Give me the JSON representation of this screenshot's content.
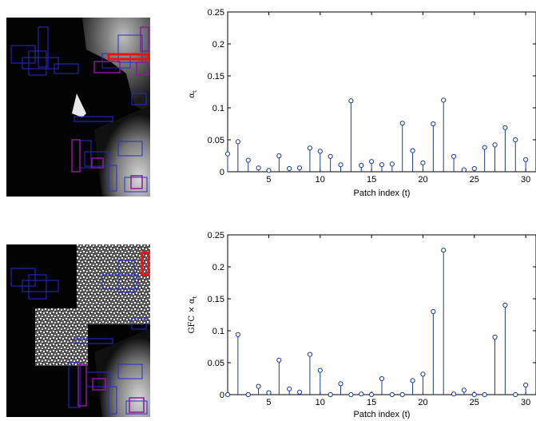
{
  "chart_data": [
    {
      "type": "stem",
      "xlabel": "Patch index (t)",
      "ylabel": "α_t",
      "ylabel_main": "α",
      "ylabel_sub": "t",
      "ylim": [
        0,
        0.25
      ],
      "xlim": [
        1,
        31
      ],
      "xticks": [
        5,
        10,
        15,
        20,
        25,
        30
      ],
      "yticks": [
        0,
        0.05,
        0.1,
        0.15,
        0.2,
        0.25
      ],
      "ytick_labels": [
        "0",
        "0.05",
        "0.1",
        "0.15",
        "0.2",
        "0.25"
      ],
      "x": [
        1,
        2,
        3,
        4,
        5,
        6,
        7,
        8,
        9,
        10,
        11,
        12,
        13,
        14,
        15,
        16,
        17,
        18,
        19,
        20,
        21,
        22,
        23,
        24,
        25,
        26,
        27,
        28,
        29,
        30
      ],
      "values": [
        0.028,
        0.047,
        0.018,
        0.006,
        0.002,
        0.025,
        0.005,
        0.006,
        0.037,
        0.032,
        0.024,
        0.011,
        0.111,
        0.01,
        0.016,
        0.011,
        0.012,
        0.076,
        0.033,
        0.014,
        0.075,
        0.112,
        0.024,
        0.003,
        0.005,
        0.038,
        0.042,
        0.069,
        0.05,
        0.019
      ],
      "color": "#1f3a93"
    },
    {
      "type": "stem",
      "xlabel": "Patch index (t)",
      "ylabel": "GFC × α_t",
      "ylabel_main": "GFC × α",
      "ylabel_sub": "t",
      "ylim": [
        0,
        0.25
      ],
      "xlim": [
        1,
        31
      ],
      "xticks": [
        5,
        10,
        15,
        20,
        25,
        30
      ],
      "yticks": [
        0,
        0.05,
        0.1,
        0.15,
        0.2,
        0.25
      ],
      "ytick_labels": [
        "0",
        "0.05",
        "0.1",
        "0.15",
        "0.2",
        "0.25"
      ],
      "x": [
        1,
        2,
        3,
        4,
        5,
        6,
        7,
        8,
        9,
        10,
        11,
        12,
        13,
        14,
        15,
        16,
        17,
        18,
        19,
        20,
        21,
        22,
        23,
        24,
        25,
        26,
        27,
        28,
        29,
        30
      ],
      "values": [
        0.0,
        0.094,
        0.0,
        0.013,
        0.003,
        0.054,
        0.009,
        0.004,
        0.063,
        0.038,
        0.0,
        0.017,
        0.0,
        0.001,
        0.0,
        0.025,
        0.0,
        0.0,
        0.022,
        0.032,
        0.13,
        0.226,
        0.001,
        0.007,
        0.0,
        0.0,
        0.09,
        0.14,
        0.0,
        0.015
      ],
      "color": "#1f3a93"
    }
  ],
  "colors": {
    "stem": "#1f3a93",
    "box_blue": "#2a2ad0",
    "box_purple": "#8b1a9a",
    "box_red": "#ee1111"
  }
}
